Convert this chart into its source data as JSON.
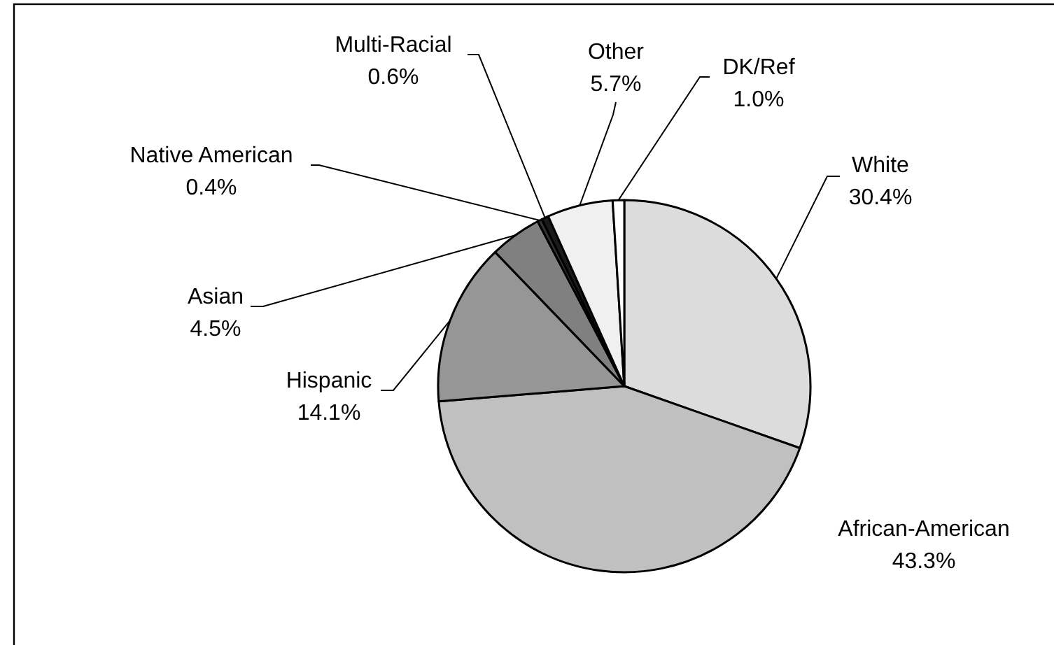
{
  "chart_data": {
    "type": "pie",
    "categories": [
      "White",
      "African-American",
      "Hispanic",
      "Asian",
      "Native American",
      "Multi-Racial",
      "Other",
      "DK/Ref"
    ],
    "values": [
      30.4,
      43.3,
      14.1,
      4.5,
      0.4,
      0.6,
      5.7,
      1.0
    ],
    "value_labels": [
      "30.4%",
      "43.3%",
      "14.1%",
      "4.5%",
      "0.4%",
      "0.6%",
      "5.7%",
      "1.0%"
    ],
    "colors": [
      "#dcdcdc",
      "#c0c0c0",
      "#969696",
      "#808080",
      "#333333",
      "#1a1a1a",
      "#f0f0f0",
      "#ffffff"
    ]
  }
}
